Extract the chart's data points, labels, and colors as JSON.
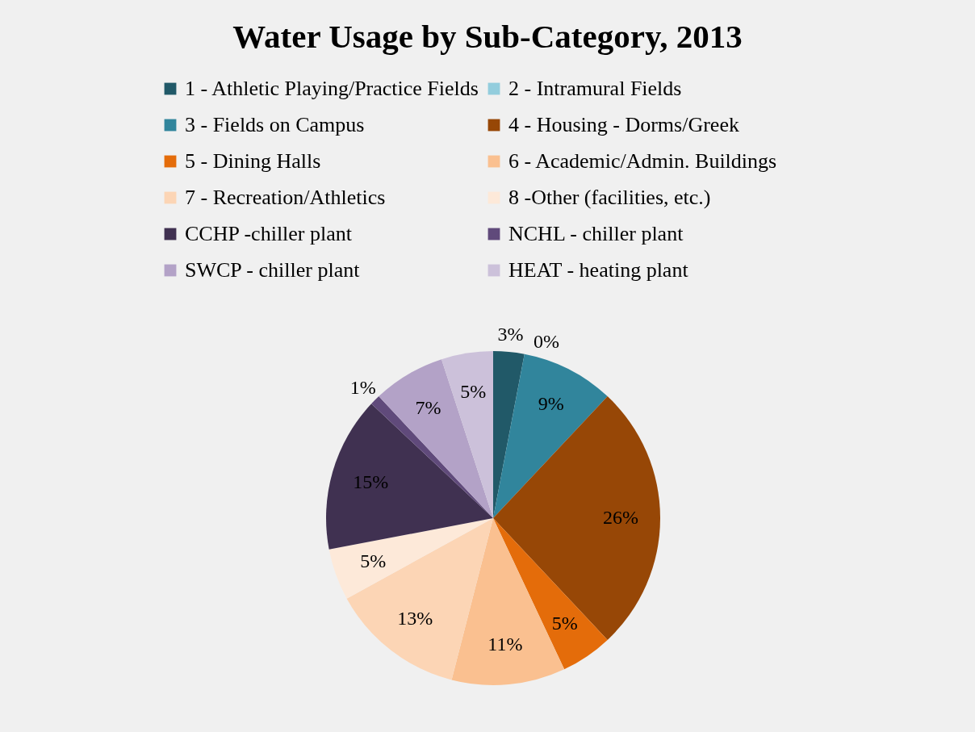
{
  "chart_data": {
    "type": "pie",
    "title": "Water Usage by Sub-Category, 2013",
    "categories": [
      "1 - Athletic Playing/Practice Fields",
      "2 - Intramural Fields",
      "3 - Fields on Campus",
      "4 - Housing - Dorms/Greek",
      "5 - Dining Halls",
      "6 - Academic/Admin. Buildings",
      "7 - Recreation/Athletics",
      "8 -Other (facilities, etc.)",
      "CCHP -chiller plant",
      "NCHL - chiller plant",
      "SWCP - chiller plant",
      "HEAT - heating plant"
    ],
    "values": [
      3,
      0,
      9,
      26,
      5,
      11,
      13,
      5,
      15,
      1,
      7,
      5
    ],
    "value_labels": [
      "3%",
      "0%",
      "9%",
      "26%",
      "5%",
      "11%",
      "13%",
      "5%",
      "15%",
      "1%",
      "7%",
      "5%"
    ],
    "colors": [
      "#215968",
      "#93cddd",
      "#31859c",
      "#974706",
      "#e46c0a",
      "#fac090",
      "#fcd5b5",
      "#fde9d9",
      "#403151",
      "#604a7b",
      "#b3a2c7",
      "#ccc1da"
    ],
    "legend": "top"
  }
}
